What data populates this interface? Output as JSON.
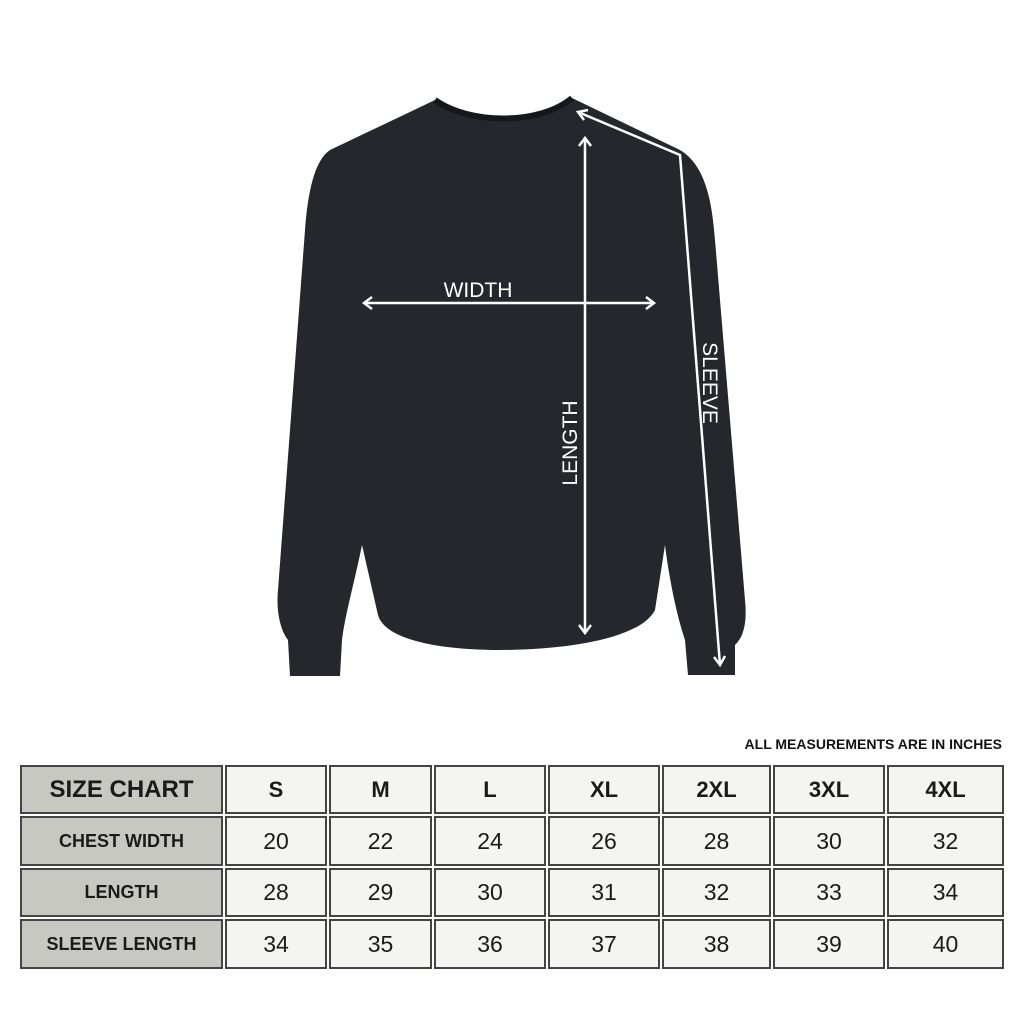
{
  "diagram": {
    "labels": {
      "width": "WIDTH",
      "length": "LENGTH",
      "sleeve": "SLEEVE"
    },
    "garment_color": "#25272c"
  },
  "note": "ALL MEASUREMENTS ARE IN INCHES",
  "table": {
    "corner": "SIZE CHART",
    "sizes": [
      "S",
      "M",
      "L",
      "XL",
      "2XL",
      "3XL",
      "4XL"
    ],
    "rows": [
      {
        "label": "CHEST WIDTH",
        "values": [
          "20",
          "22",
          "24",
          "26",
          "28",
          "30",
          "32"
        ]
      },
      {
        "label": "LENGTH",
        "values": [
          "28",
          "29",
          "30",
          "31",
          "32",
          "33",
          "34"
        ]
      },
      {
        "label": "SLEEVE LENGTH",
        "values": [
          "34",
          "35",
          "36",
          "37",
          "38",
          "39",
          "40"
        ]
      }
    ],
    "colors": {
      "label_bg": "#c8c8c3",
      "cell_bg": "#f4f4f3",
      "border": "#444444"
    }
  }
}
